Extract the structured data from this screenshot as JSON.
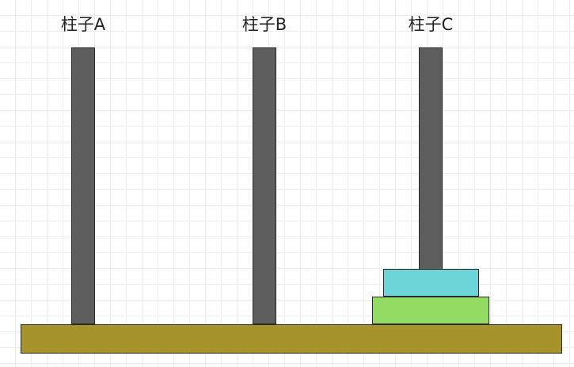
{
  "pegs": [
    {
      "label": "柱子A"
    },
    {
      "label": "柱子B"
    },
    {
      "label": "柱子C"
    }
  ],
  "disks_on_peg_c": [
    {
      "position": "top",
      "color": "#6dd5d8"
    },
    {
      "position": "bottom",
      "color": "#94dc64"
    }
  ],
  "colors": {
    "peg": "#5e5e5e",
    "base": "#a6932b"
  }
}
